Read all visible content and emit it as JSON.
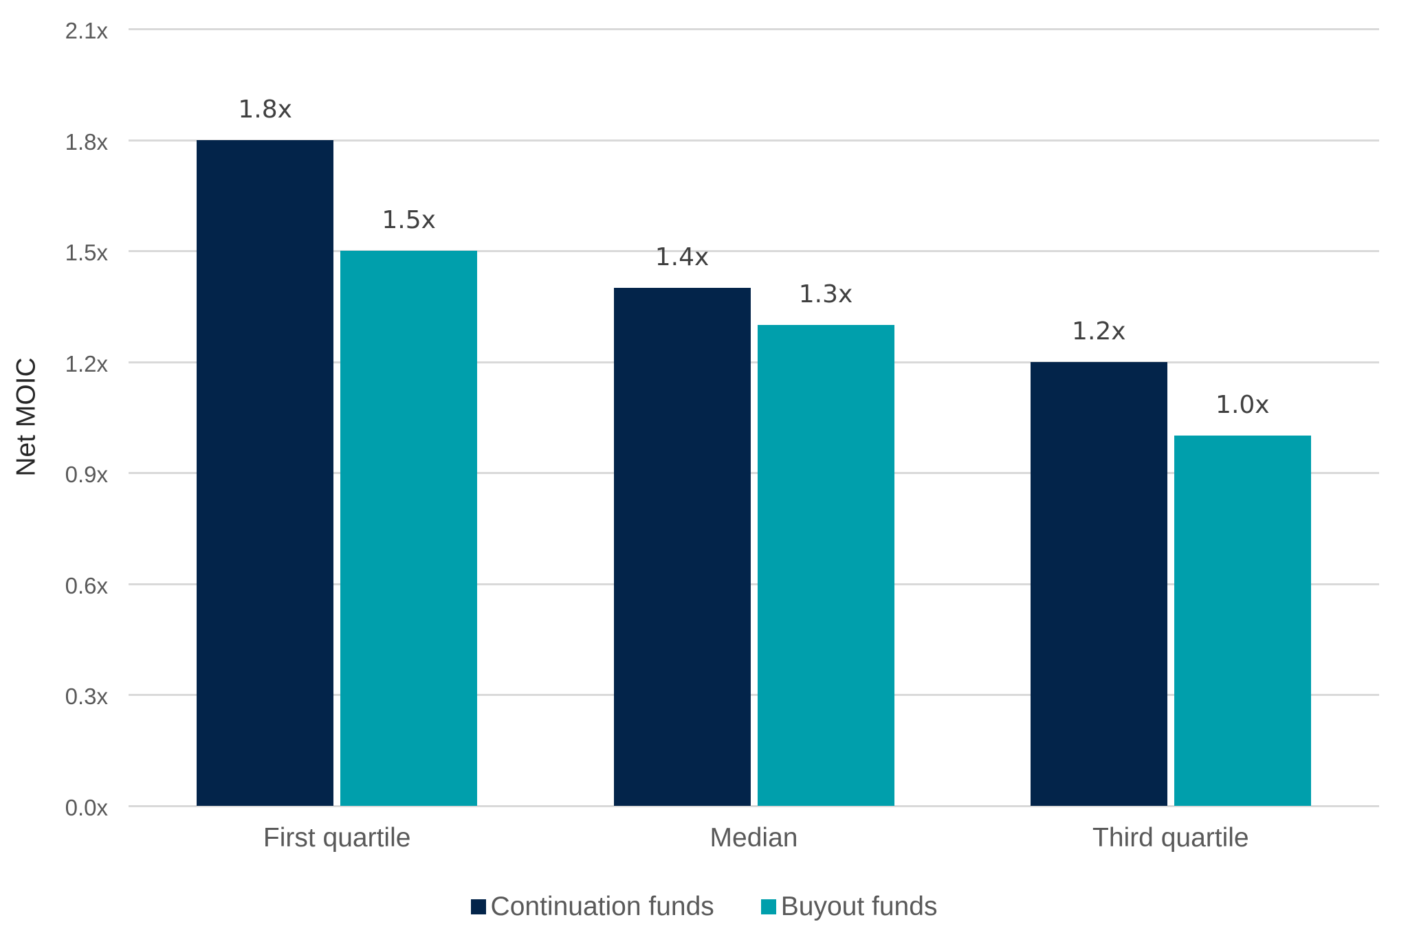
{
  "chart_data": {
    "type": "bar",
    "title": "",
    "xlabel": "",
    "ylabel": "Net MOIC",
    "ylim": [
      0,
      2.1
    ],
    "yticks": [
      "0.0x",
      "0.3x",
      "0.6x",
      "0.9x",
      "1.2x",
      "1.5x",
      "1.8x",
      "2.1x"
    ],
    "ytick_values": [
      0,
      0.3,
      0.6,
      0.9,
      1.2,
      1.5,
      1.8,
      2.1
    ],
    "grid": true,
    "legend_position": "bottom",
    "categories": [
      "First quartile",
      "Median",
      "Third quartile"
    ],
    "series": [
      {
        "name": "Continuation funds",
        "color": "#03244A",
        "values": [
          1.8,
          1.4,
          1.2
        ],
        "labels": [
          "1.8x",
          "1.4x",
          "1.2x"
        ]
      },
      {
        "name": "Buyout funds",
        "color": "#009FAC",
        "values": [
          1.5,
          1.3,
          1.0
        ],
        "labels": [
          "1.5x",
          "1.3x",
          "1.0x"
        ]
      }
    ]
  },
  "colors": {
    "gridline": "#D9D9D9",
    "tick_text": "#595959",
    "data_label_text": "#404040",
    "axis_title_text": "#262626"
  }
}
